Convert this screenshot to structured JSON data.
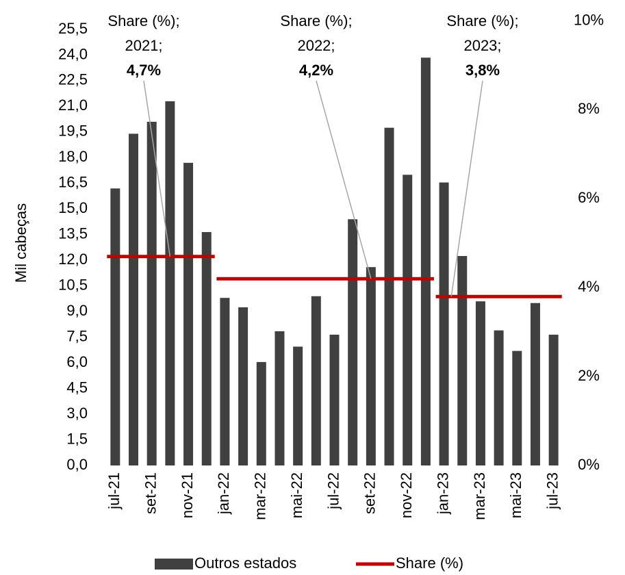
{
  "chart_data": {
    "type": "bar",
    "y_axis_label": "Mil cabeças",
    "categories": [
      "jul-21",
      null,
      "set-21",
      null,
      "nov-21",
      null,
      "jan-22",
      null,
      "mar-22",
      null,
      "mai-22",
      null,
      "jul-22",
      null,
      "set-22",
      null,
      "nov-22",
      null,
      "jan-23",
      null,
      "mar-23",
      null,
      "mai-23",
      null,
      "jul-23"
    ],
    "series": [
      {
        "name": "Outros estados",
        "color": "#404040",
        "type": "bar",
        "values": [
          16.2,
          19.4,
          20.1,
          21.3,
          17.7,
          13.65,
          9.8,
          9.25,
          6.05,
          7.85,
          6.95,
          9.9,
          7.65,
          14.4,
          11.6,
          19.75,
          17.0,
          23.85,
          16.55,
          12.25,
          9.6,
          7.9,
          6.7,
          9.5,
          7.65
        ]
      },
      {
        "name": "Share (%)",
        "color": "#c00000",
        "type": "line",
        "axis": "y2",
        "values": [
          4.7,
          4.7,
          4.7,
          4.7,
          4.7,
          4.7,
          4.2,
          4.2,
          4.2,
          4.2,
          4.2,
          4.2,
          4.2,
          4.2,
          4.2,
          4.2,
          4.2,
          4.2,
          3.8,
          3.8,
          3.8,
          3.8,
          3.8,
          3.8,
          3.8
        ]
      }
    ],
    "ylim": [
      0,
      26
    ],
    "yticks": [
      {
        "value": 0,
        "label": "0,0"
      },
      {
        "value": 1.5,
        "label": "1,5"
      },
      {
        "value": 3,
        "label": "3,0"
      },
      {
        "value": 4.5,
        "label": "4,5"
      },
      {
        "value": 6,
        "label": "6,0"
      },
      {
        "value": 7.5,
        "label": "7,5"
      },
      {
        "value": 9,
        "label": "9,0"
      },
      {
        "value": 10.5,
        "label": "10,5"
      },
      {
        "value": 12,
        "label": "12,0"
      },
      {
        "value": 13.5,
        "label": "13,5"
      },
      {
        "value": 15,
        "label": "15,0"
      },
      {
        "value": 16.5,
        "label": "16,5"
      },
      {
        "value": 18,
        "label": "18,0"
      },
      {
        "value": 19.5,
        "label": "19,5"
      },
      {
        "value": 21,
        "label": "21,0"
      },
      {
        "value": 22.5,
        "label": "22,5"
      },
      {
        "value": 24,
        "label": "24,0"
      },
      {
        "value": 25.5,
        "label": "25,5"
      }
    ],
    "y2lim": [
      0,
      10
    ],
    "y2ticks": [
      {
        "value": 0,
        "label": "0%"
      },
      {
        "value": 2,
        "label": "2%"
      },
      {
        "value": 4,
        "label": "4%"
      },
      {
        "value": 6,
        "label": "6%"
      },
      {
        "value": 8,
        "label": "8%"
      },
      {
        "value": 10,
        "label": "10%"
      }
    ],
    "annotations": [
      {
        "lines": [
          "Share (%);",
          "2021;",
          "4,7%"
        ]
      },
      {
        "lines": [
          "Share (%);",
          "2022;",
          "4,2%"
        ]
      },
      {
        "lines": [
          "Share (%);",
          "2023;",
          "3,8%"
        ]
      }
    ],
    "legend": "bottom"
  }
}
